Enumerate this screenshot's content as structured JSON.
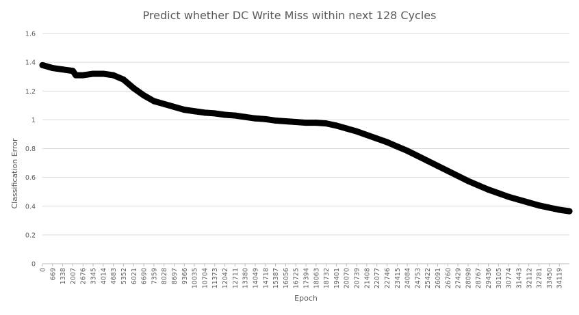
{
  "chart_data": {
    "type": "line",
    "title": "Predict whether DC Write Miss within next 128 Cycles",
    "xlabel": "Epoch",
    "ylabel": "Classification Error",
    "ylim": [
      0,
      1.6
    ],
    "yticks": [
      "0",
      "0.2",
      "0.4",
      "0.6",
      "0.8",
      "1",
      "1.2",
      "1.4",
      "1.6"
    ],
    "xlim": [
      0,
      34788
    ],
    "xticks": [
      "0",
      "669",
      "1338",
      "2007",
      "2676",
      "3345",
      "4014",
      "4683",
      "5352",
      "6021",
      "6690",
      "7359",
      "8028",
      "8697",
      "9366",
      "10035",
      "10704",
      "11373",
      "12042",
      "12711",
      "13380",
      "14049",
      "14718",
      "15387",
      "16056",
      "16725",
      "17394",
      "18063",
      "18732",
      "19401",
      "20070",
      "20739",
      "21408",
      "22077",
      "22746",
      "23415",
      "24084",
      "24753",
      "25422",
      "26091",
      "26760",
      "27429",
      "28098",
      "28767",
      "29436",
      "30105",
      "30774",
      "31443",
      "32112",
      "32781",
      "33450",
      "34119"
    ],
    "grid": "horizontal",
    "legend": "none",
    "line_color": "#000000",
    "series": [
      {
        "x": [
          0,
          669,
          1338,
          2007,
          2200,
          2676,
          3345,
          4014,
          4683,
          5352,
          6021,
          6690,
          7359,
          8028,
          8697,
          9366,
          10035,
          10704,
          11373,
          12042,
          12711,
          13380,
          14049,
          14718,
          15387,
          16056,
          16725,
          17394,
          18063,
          18732,
          19401,
          20070,
          20739,
          21408,
          22077,
          22746,
          23415,
          24084,
          24753,
          25422,
          26091,
          26760,
          27429,
          28098,
          28767,
          29436,
          30105,
          30774,
          31443,
          32112,
          32781,
          33450,
          34119,
          34788
        ],
        "y": [
          1.38,
          1.36,
          1.35,
          1.34,
          1.31,
          1.31,
          1.32,
          1.32,
          1.31,
          1.28,
          1.22,
          1.17,
          1.13,
          1.11,
          1.09,
          1.07,
          1.06,
          1.05,
          1.045,
          1.035,
          1.03,
          1.02,
          1.01,
          1.005,
          0.995,
          0.99,
          0.985,
          0.98,
          0.98,
          0.975,
          0.96,
          0.94,
          0.92,
          0.895,
          0.87,
          0.845,
          0.815,
          0.785,
          0.75,
          0.715,
          0.68,
          0.645,
          0.61,
          0.575,
          0.545,
          0.515,
          0.49,
          0.465,
          0.445,
          0.425,
          0.405,
          0.39,
          0.375,
          0.365
        ],
        "band": 0.04
      }
    ]
  }
}
